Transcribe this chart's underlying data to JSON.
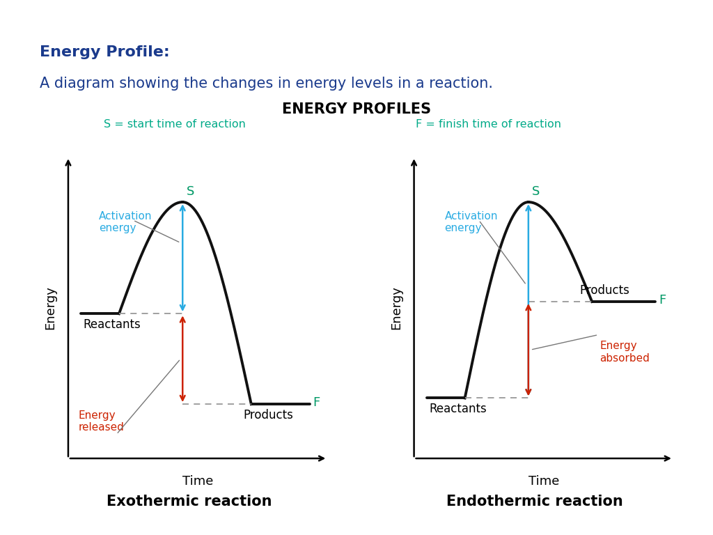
{
  "title": "ENERGY PROFILES",
  "subtitle_s": "S = start time of reaction",
  "subtitle_f": "F = finish time of reaction",
  "subtitle_s_color": "#00AA88",
  "subtitle_f_color": "#00AA88",
  "header_title1": "Energy Profile:",
  "header_title2": "A diagram showing the changes in energy levels in a reaction.",
  "header_bg": "#C8E8F0",
  "header_text_color": "#1A3A8C",
  "top_bar_color1": "#0099BB",
  "top_bar_color2": "#33BBDD",
  "bottom_bar_color": "#007799",
  "exo_label": "Exothermic reaction",
  "endo_label": "Endothermic reaction",
  "ylabel": "Energy",
  "xlabel": "Time",
  "activation_energy_color": "#29ABE2",
  "energy_released_color": "#CC2200",
  "energy_absorbed_color": "#CC2200",
  "s_label_color": "#009966",
  "f_label_color": "#009966",
  "curve_color": "#111111",
  "dashed_color": "#999999",
  "annotation_line_color": "#777777",
  "bg_color": "#FFFFFF"
}
